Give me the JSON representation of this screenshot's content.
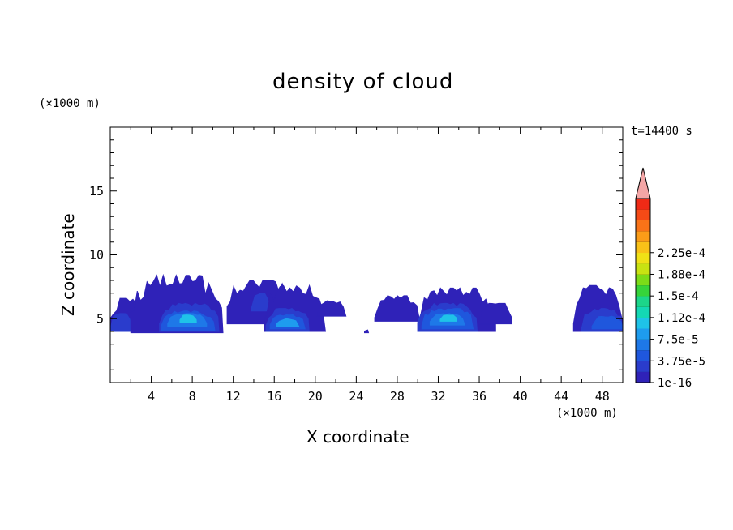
{
  "chart_data": {
    "type": "heatmap",
    "title": "density of cloud",
    "xlabel": "X coordinate",
    "ylabel": "Z coordinate",
    "x_unit": "(×1000 m)",
    "y_unit": "(×1000 m)",
    "time_label": "t=14400 s",
    "xlim": [
      0,
      50
    ],
    "ylim": [
      0,
      20
    ],
    "x_ticks": [
      "4",
      "8",
      "12",
      "16",
      "20",
      "24",
      "28",
      "32",
      "36",
      "40",
      "44",
      "48"
    ],
    "y_ticks": [
      "5",
      "10",
      "15"
    ],
    "colorbar": {
      "labels": [
        "1e-16",
        "3.75e-5",
        "7.5e-5",
        "1.12e-4",
        "1.5e-4",
        "1.88e-4",
        "2.25e-4"
      ],
      "colors": [
        "#3a0f9e",
        "#2f22b8",
        "#2a3ccc",
        "#1f57dd",
        "#1e78e8",
        "#1e9cee",
        "#1fc3e8",
        "#14d8b4",
        "#1cd68a",
        "#36d43a",
        "#7cdc18",
        "#c8e312",
        "#f0e116",
        "#f9c118",
        "#fb9c18",
        "#f97318",
        "#f54a16",
        "#ef2a16",
        "#f4a6a6"
      ],
      "overflow_color": "#f4a6a6"
    },
    "cloud_blobs": [
      {
        "x": [
          0.0,
          4.2
        ],
        "z": [
          4.0,
          6.6
        ],
        "level": 1
      },
      {
        "x": [
          0.0,
          2.2
        ],
        "z": [
          4.0,
          5.4
        ],
        "level": 2
      },
      {
        "x": [
          2.0,
          11.0
        ],
        "z": [
          3.9,
          8.4
        ],
        "level": 1
      },
      {
        "x": [
          4.8,
          10.6
        ],
        "z": [
          4.0,
          6.2
        ],
        "level": 2
      },
      {
        "x": [
          5.0,
          10.2
        ],
        "z": [
          4.1,
          5.6
        ],
        "level": 3
      },
      {
        "x": [
          5.6,
          9.4
        ],
        "z": [
          4.4,
          5.4
        ],
        "level": 4
      },
      {
        "x": [
          6.8,
          8.4
        ],
        "z": [
          4.7,
          5.3
        ],
        "level": 6
      },
      {
        "x": [
          11.4,
          17.6
        ],
        "z": [
          4.6,
          8.0
        ],
        "level": 1
      },
      {
        "x": [
          13.8,
          15.6
        ],
        "z": [
          5.6,
          7.0
        ],
        "level": 2
      },
      {
        "x": [
          15.0,
          21.0
        ],
        "z": [
          4.0,
          7.6
        ],
        "level": 1
      },
      {
        "x": [
          15.2,
          19.4
        ],
        "z": [
          4.0,
          5.8
        ],
        "level": 2
      },
      {
        "x": [
          15.6,
          19.0
        ],
        "z": [
          4.2,
          5.3
        ],
        "level": 3
      },
      {
        "x": [
          16.2,
          18.4
        ],
        "z": [
          4.4,
          5.0
        ],
        "level": 5
      },
      {
        "x": [
          20.2,
          23.0
        ],
        "z": [
          5.2,
          6.4
        ],
        "level": 1
      },
      {
        "x": [
          24.8,
          25.2
        ],
        "z": [
          3.9,
          4.2
        ],
        "level": 1
      },
      {
        "x": [
          25.8,
          30.2
        ],
        "z": [
          4.8,
          6.8
        ],
        "level": 1
      },
      {
        "x": [
          30.0,
          37.6
        ],
        "z": [
          4.0,
          7.4
        ],
        "level": 1
      },
      {
        "x": [
          30.0,
          35.8
        ],
        "z": [
          4.0,
          6.2
        ],
        "level": 2
      },
      {
        "x": [
          30.4,
          35.4
        ],
        "z": [
          4.2,
          5.8
        ],
        "level": 3
      },
      {
        "x": [
          31.2,
          34.6
        ],
        "z": [
          4.5,
          5.4
        ],
        "level": 4
      },
      {
        "x": [
          32.2,
          33.8
        ],
        "z": [
          4.8,
          5.3
        ],
        "level": 6
      },
      {
        "x": [
          36.0,
          39.2
        ],
        "z": [
          4.6,
          6.2
        ],
        "level": 1
      },
      {
        "x": [
          45.2,
          50.0
        ],
        "z": [
          4.0,
          7.6
        ],
        "level": 1
      },
      {
        "x": [
          46.0,
          50.0
        ],
        "z": [
          4.0,
          5.8
        ],
        "level": 2
      },
      {
        "x": [
          47.0,
          50.0
        ],
        "z": [
          4.2,
          5.2
        ],
        "level": 3
      }
    ]
  }
}
